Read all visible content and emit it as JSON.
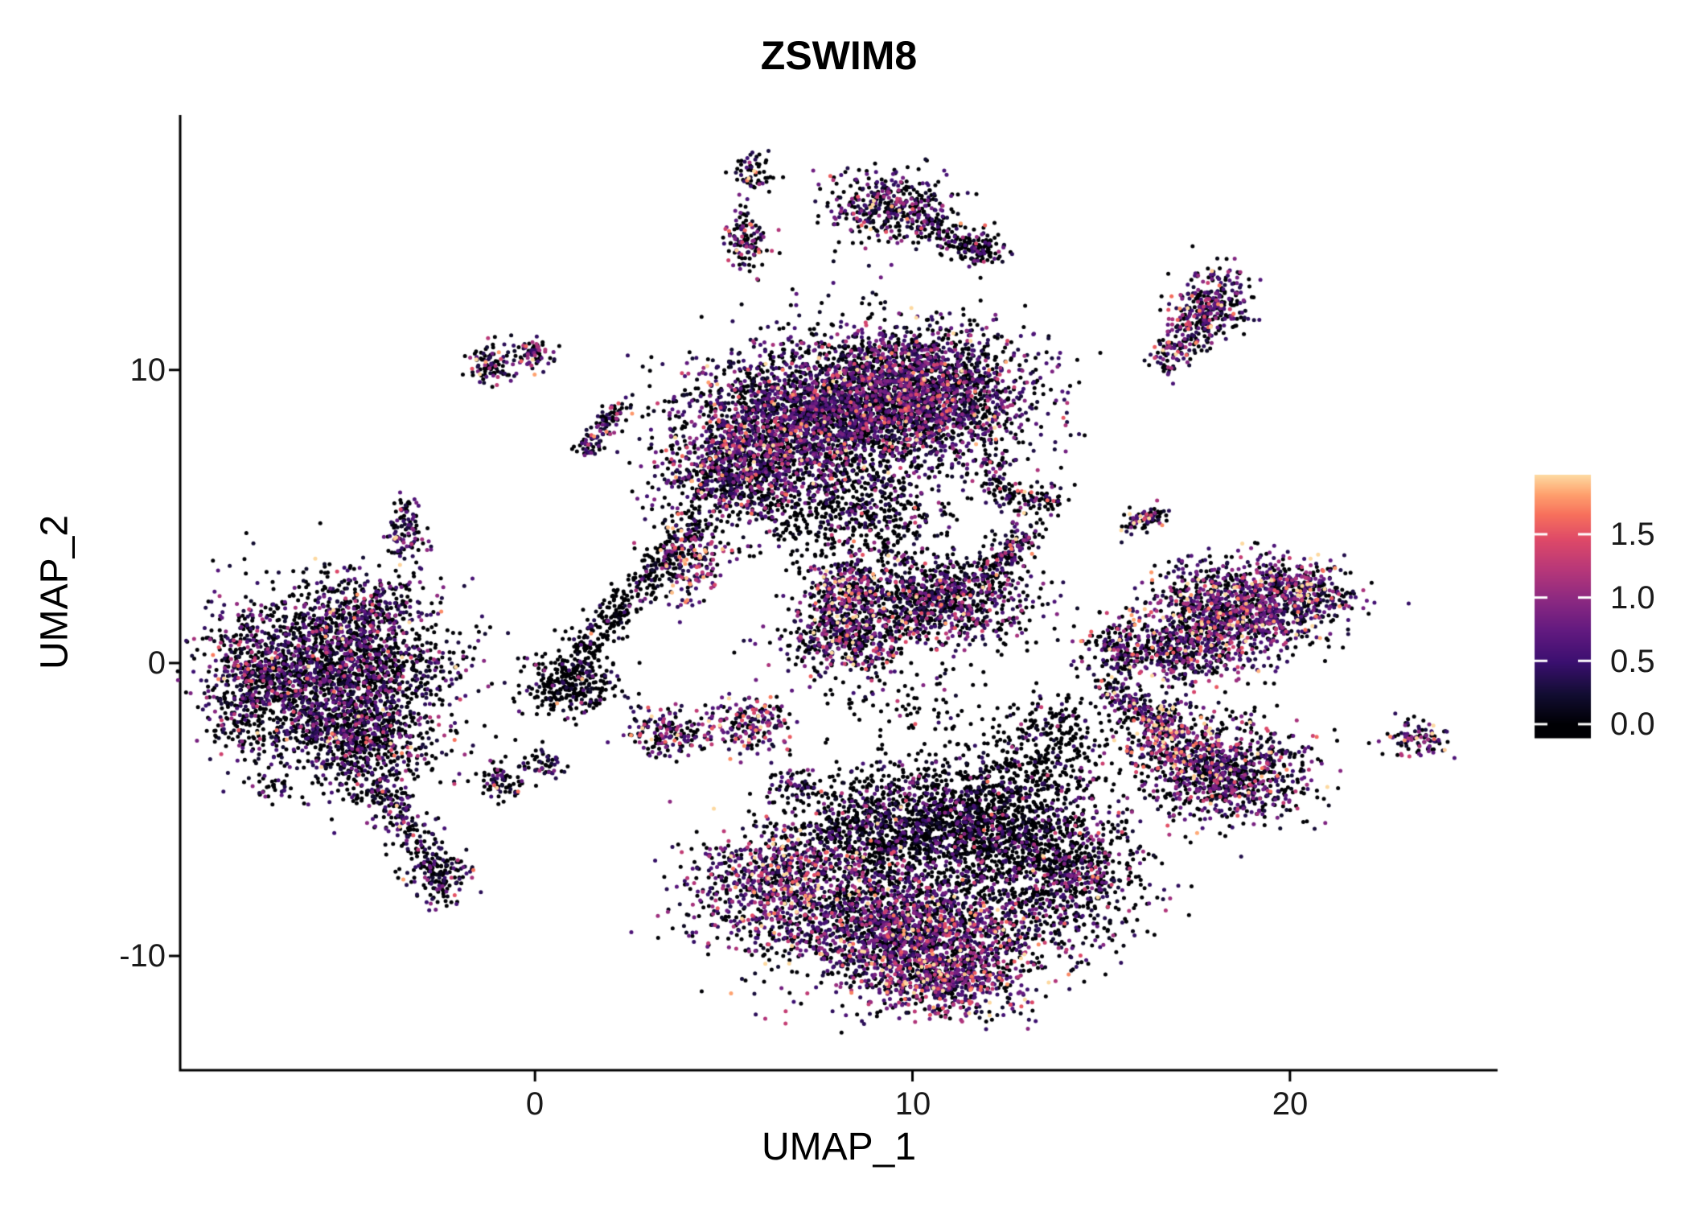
{
  "chart_data": {
    "type": "scatter",
    "title": "ZSWIM8",
    "xlabel": "UMAP_1",
    "ylabel": "UMAP_2",
    "xlim": [
      -9.4,
      25.5
    ],
    "ylim": [
      -13.9,
      18.7
    ],
    "x_ticks": [
      0,
      10,
      20
    ],
    "x_tick_labels": [
      "0",
      "10",
      "20"
    ],
    "y_ticks": [
      -10,
      0,
      10
    ],
    "y_tick_labels": [
      "-10",
      "0",
      "10"
    ],
    "grid": false,
    "point_radius_px": 2.5,
    "legend": {
      "position": "right",
      "ticks": [
        0.0,
        0.5,
        1.0,
        1.5
      ],
      "tick_labels_top_down": [
        "1.5",
        "1.0",
        "0.5",
        "0.0"
      ],
      "vmax": 1.97,
      "bar_vmin": -0.102,
      "bar_vmax": 1.97
    },
    "colormap": {
      "name": "magma",
      "stops": [
        [
          0.0,
          "#000004"
        ],
        [
          0.12,
          "#120d32"
        ],
        [
          0.25,
          "#3b0f70"
        ],
        [
          0.38,
          "#641a80"
        ],
        [
          0.5,
          "#8c2981"
        ],
        [
          0.62,
          "#b73779"
        ],
        [
          0.74,
          "#de4968"
        ],
        [
          0.84,
          "#f7705c"
        ],
        [
          0.92,
          "#fe9f6d"
        ],
        [
          1.0,
          "#fdd9a0"
        ]
      ]
    },
    "clusters": [
      {
        "name": "left-main",
        "type": "blob",
        "x": -5.4,
        "y": -0.2,
        "sx": 1.55,
        "sy": 1.35,
        "n": 2100,
        "zero": 0.52,
        "mean": 0.6
      },
      {
        "name": "left-main-south",
        "type": "blob",
        "x": -4.6,
        "y": -2.6,
        "sx": 1.1,
        "sy": 0.9,
        "n": 650,
        "zero": 0.5,
        "mean": 0.6
      },
      {
        "name": "left-edge-west",
        "type": "blob",
        "x": -7.3,
        "y": -1.2,
        "sx": 0.6,
        "sy": 0.9,
        "n": 280,
        "zero": 0.5,
        "mean": 0.6
      },
      {
        "name": "left-north-spur",
        "type": "blob",
        "x": -4.4,
        "y": 1.8,
        "sx": 0.8,
        "sy": 0.6,
        "n": 220,
        "zero": 0.5,
        "mean": 0.6
      },
      {
        "name": "left-tail",
        "type": "line",
        "x1": -4.4,
        "y1": -3.9,
        "x2": -2.3,
        "y2": -7.7,
        "jitter": 0.38,
        "n": 300,
        "zero": 0.55,
        "mean": 0.55
      },
      {
        "name": "left-tail-tip",
        "type": "blob",
        "x": -2.5,
        "y": -7.3,
        "sx": 0.3,
        "sy": 0.5,
        "n": 70,
        "zero": 0.6,
        "mean": 0.5
      },
      {
        "name": "center-small-blob",
        "type": "blob",
        "x": 0.9,
        "y": -0.7,
        "sx": 0.6,
        "sy": 0.5,
        "n": 300,
        "zero": 0.78,
        "mean": 0.45
      },
      {
        "name": "center-streak",
        "type": "line",
        "x1": 1.1,
        "y1": 0.1,
        "x2": 4.3,
        "y2": 4.9,
        "jitter": 0.3,
        "n": 380,
        "zero": 0.8,
        "mean": 0.5
      },
      {
        "name": "top-mid-right-lobe",
        "type": "blob",
        "x": 10.2,
        "y": 9.2,
        "sx": 1.45,
        "sy": 1.15,
        "n": 2500,
        "zero": 0.42,
        "mean": 0.62
      },
      {
        "name": "top-mid-left-lobe",
        "type": "blob",
        "x": 7.1,
        "y": 8.3,
        "sx": 1.5,
        "sy": 1.25,
        "n": 2100,
        "zero": 0.45,
        "mean": 0.62
      },
      {
        "name": "top-mid-lower-left",
        "type": "blob",
        "x": 5.2,
        "y": 6.5,
        "sx": 0.95,
        "sy": 0.85,
        "n": 650,
        "zero": 0.4,
        "mean": 0.7
      },
      {
        "name": "top-mid-under-scatter",
        "type": "blob",
        "x": 7.4,
        "y": 5.2,
        "sx": 1.5,
        "sy": 0.95,
        "n": 420,
        "zero": 0.72,
        "mean": 0.5
      },
      {
        "name": "top-mid-under-scatter2",
        "type": "blob",
        "x": 9.3,
        "y": 5.1,
        "sx": 0.8,
        "sy": 0.95,
        "n": 260,
        "zero": 0.75,
        "mean": 0.5
      },
      {
        "name": "bright-patch-west",
        "type": "blob",
        "x": 4.1,
        "y": 3.4,
        "sx": 0.45,
        "sy": 0.7,
        "n": 170,
        "zero": 0.2,
        "mean": 1.0,
        "max": 1.9
      },
      {
        "name": "top-mid-tendril",
        "type": "line",
        "x1": 11.9,
        "y1": 6.9,
        "x2": 12.7,
        "y2": 5.3,
        "jitter": 0.25,
        "n": 90,
        "zero": 0.6,
        "mean": 0.6
      },
      {
        "name": "mid-wing-east",
        "type": "blob",
        "x": 10.7,
        "y": 2.2,
        "sx": 1.25,
        "sy": 0.75,
        "n": 950,
        "zero": 0.5,
        "mean": 0.65
      },
      {
        "name": "mid-wing-west",
        "type": "blob",
        "x": 8.4,
        "y": 0.9,
        "sx": 0.9,
        "sy": 0.7,
        "n": 520,
        "zero": 0.45,
        "mean": 0.7
      },
      {
        "name": "mid-wing-bright",
        "type": "blob",
        "x": 8.2,
        "y": 2.5,
        "sx": 0.5,
        "sy": 0.6,
        "n": 230,
        "zero": 0.25,
        "mean": 0.95
      },
      {
        "name": "mid-wing-hook",
        "type": "line",
        "x1": 12.1,
        "y1": 3.0,
        "x2": 13.1,
        "y2": 4.6,
        "jitter": 0.28,
        "n": 150,
        "zero": 0.5,
        "mean": 0.7
      },
      {
        "name": "mid-sparse",
        "type": "blob",
        "x": 10.0,
        "y": -1.5,
        "sx": 1.2,
        "sy": 0.6,
        "n": 80,
        "zero": 0.85,
        "mean": 0.4
      },
      {
        "name": "bottom-west-arm",
        "type": "blob",
        "x": 6.3,
        "y": -7.7,
        "sx": 1.15,
        "sy": 1.0,
        "n": 850,
        "zero": 0.32,
        "mean": 0.8
      },
      {
        "name": "bottom-north",
        "type": "blob",
        "x": 9.6,
        "y": -5.8,
        "sx": 1.6,
        "sy": 1.1,
        "n": 1500,
        "zero": 0.66,
        "mean": 0.55
      },
      {
        "name": "bottom-north-east",
        "type": "blob",
        "x": 12.4,
        "y": -5.5,
        "sx": 1.3,
        "sy": 1.0,
        "n": 900,
        "zero": 0.7,
        "mean": 0.5
      },
      {
        "name": "bottom-core",
        "type": "blob",
        "x": 10.2,
        "y": -9.2,
        "sx": 1.75,
        "sy": 1.05,
        "n": 2000,
        "zero": 0.38,
        "mean": 0.7
      },
      {
        "name": "bottom-bright",
        "type": "blob",
        "x": 10.8,
        "y": -10.9,
        "sx": 1.15,
        "sy": 0.6,
        "n": 520,
        "zero": 0.28,
        "mean": 0.85
      },
      {
        "name": "bottom-east-lobe",
        "type": "blob",
        "x": 14.2,
        "y": -7.4,
        "sx": 1.0,
        "sy": 1.0,
        "n": 650,
        "zero": 0.55,
        "mean": 0.6
      },
      {
        "name": "bottom-upper-scatter",
        "type": "blob",
        "x": 12.9,
        "y": -3.6,
        "sx": 1.2,
        "sy": 0.8,
        "n": 300,
        "zero": 0.8,
        "mean": 0.5
      },
      {
        "name": "bottom-upper-scatter2",
        "type": "blob",
        "x": 13.9,
        "y": -2.2,
        "sx": 0.8,
        "sy": 0.55,
        "n": 140,
        "zero": 0.85,
        "mean": 0.45
      },
      {
        "name": "right-mid-main",
        "type": "blob",
        "x": 18.6,
        "y": 1.8,
        "sx": 1.15,
        "sy": 0.85,
        "n": 1150,
        "zero": 0.35,
        "mean": 0.8
      },
      {
        "name": "right-mid-south",
        "type": "blob",
        "x": 17.3,
        "y": 0.3,
        "sx": 0.7,
        "sy": 0.55,
        "n": 300,
        "zero": 0.45,
        "mean": 0.7
      },
      {
        "name": "right-mid-east",
        "type": "blob",
        "x": 20.4,
        "y": 2.5,
        "sx": 0.65,
        "sy": 0.55,
        "n": 260,
        "zero": 0.38,
        "mean": 0.8
      },
      {
        "name": "right-low-main",
        "type": "blob",
        "x": 18.2,
        "y": -3.7,
        "sx": 1.15,
        "sy": 0.85,
        "n": 950,
        "zero": 0.45,
        "mean": 0.75
      },
      {
        "name": "right-low-bright",
        "type": "blob",
        "x": 16.7,
        "y": -2.3,
        "sx": 0.6,
        "sy": 0.6,
        "n": 260,
        "zero": 0.28,
        "mean": 0.95
      },
      {
        "name": "right-low-tail",
        "type": "line",
        "x1": 15.2,
        "y1": -0.9,
        "x2": 16.4,
        "y2": -1.9,
        "jitter": 0.25,
        "n": 130,
        "zero": 0.45,
        "mean": 0.8
      },
      {
        "name": "small-mid-right",
        "type": "blob",
        "x": 15.5,
        "y": 0.4,
        "sx": 0.55,
        "sy": 0.45,
        "n": 210,
        "zero": 0.55,
        "mean": 0.7
      },
      {
        "name": "topright-stem",
        "type": "line",
        "x1": 16.7,
        "y1": 10.1,
        "x2": 17.6,
        "y2": 11.7,
        "jitter": 0.3,
        "n": 160,
        "zero": 0.4,
        "mean": 0.75
      },
      {
        "name": "topright-head",
        "type": "blob",
        "x": 17.9,
        "y": 12.3,
        "sx": 0.5,
        "sy": 0.55,
        "n": 270,
        "zero": 0.38,
        "mean": 0.75
      },
      {
        "name": "top-blob-main",
        "type": "blob",
        "x": 9.4,
        "y": 15.6,
        "sx": 0.85,
        "sy": 0.6,
        "n": 400,
        "zero": 0.45,
        "mean": 0.65
      },
      {
        "name": "top-blob-arm",
        "type": "line",
        "x1": 10.3,
        "y1": 15.0,
        "x2": 11.9,
        "y2": 13.9,
        "jitter": 0.22,
        "n": 130,
        "zero": 0.55,
        "mean": 0.6
      },
      {
        "name": "top-blob-east",
        "type": "blob",
        "x": 11.9,
        "y": 14.1,
        "sx": 0.3,
        "sy": 0.3,
        "n": 70,
        "zero": 0.5,
        "mean": 0.7
      },
      {
        "name": "top-small-1",
        "type": "blob",
        "x": 5.6,
        "y": 14.4,
        "sx": 0.3,
        "sy": 0.5,
        "n": 120,
        "zero": 0.45,
        "mean": 0.7
      },
      {
        "name": "top-small-2",
        "type": "blob",
        "x": 5.8,
        "y": 16.8,
        "sx": 0.25,
        "sy": 0.35,
        "n": 60,
        "zero": 0.55,
        "mean": 0.6
      },
      {
        "name": "ul-small-1",
        "type": "blob",
        "x": -1.15,
        "y": 10.2,
        "sx": 0.3,
        "sy": 0.35,
        "n": 90,
        "zero": 0.45,
        "mean": 0.7
      },
      {
        "name": "ul-small-2",
        "type": "blob",
        "x": -0.1,
        "y": 10.6,
        "sx": 0.3,
        "sy": 0.3,
        "n": 80,
        "zero": 0.45,
        "mean": 0.7
      },
      {
        "name": "ul-streak",
        "type": "line",
        "x1": 1.3,
        "y1": 7.2,
        "x2": 2.3,
        "y2": 8.8,
        "jitter": 0.2,
        "n": 120,
        "zero": 0.5,
        "mean": 0.65
      },
      {
        "name": "ul-vertical",
        "type": "blob",
        "x": -3.35,
        "y": 4.6,
        "sx": 0.25,
        "sy": 0.55,
        "n": 110,
        "zero": 0.45,
        "mean": 0.7
      },
      {
        "name": "small-13-5",
        "type": "blob",
        "x": 13.4,
        "y": 5.6,
        "sx": 0.35,
        "sy": 0.3,
        "n": 70,
        "zero": 0.6,
        "mean": 0.6
      },
      {
        "name": "small-16-5",
        "type": "line",
        "x1": 15.8,
        "y1": 4.8,
        "x2": 16.6,
        "y2": 5.1,
        "jitter": 0.18,
        "n": 80,
        "zero": 0.45,
        "mean": 0.8
      },
      {
        "name": "far-right-small",
        "type": "blob",
        "x": 23.4,
        "y": -2.6,
        "sx": 0.42,
        "sy": 0.3,
        "n": 95,
        "zero": 0.4,
        "mean": 0.8
      },
      {
        "name": "tiny-left",
        "type": "blob",
        "x": -6.9,
        "y": -4.3,
        "sx": 0.25,
        "sy": 0.22,
        "n": 30,
        "zero": 0.6,
        "mean": 0.5
      },
      {
        "name": "small-neg1-neg4",
        "type": "blob",
        "x": -0.9,
        "y": -4.1,
        "sx": 0.38,
        "sy": 0.28,
        "n": 80,
        "zero": 0.6,
        "mean": 0.6
      },
      {
        "name": "small-3-neg2",
        "type": "blob",
        "x": 3.4,
        "y": -2.4,
        "sx": 0.5,
        "sy": 0.42,
        "n": 170,
        "zero": 0.4,
        "mean": 0.8
      },
      {
        "name": "small-5-neg2",
        "type": "blob",
        "x": 5.6,
        "y": -2.1,
        "sx": 0.55,
        "sy": 0.45,
        "n": 200,
        "zero": 0.3,
        "mean": 0.9
      },
      {
        "name": "tiny-7-neg4",
        "type": "blob",
        "x": 6.9,
        "y": -4.2,
        "sx": 0.25,
        "sy": 0.25,
        "n": 45,
        "zero": 0.55,
        "mean": 0.7
      },
      {
        "name": "small-0-neg35",
        "type": "blob",
        "x": 0.2,
        "y": -3.4,
        "sx": 0.3,
        "sy": 0.25,
        "n": 50,
        "zero": 0.65,
        "mean": 0.5
      }
    ]
  }
}
